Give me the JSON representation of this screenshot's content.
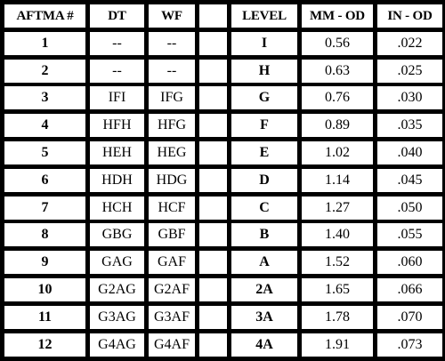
{
  "columns": [
    "AFTMA #",
    "DT",
    "WF",
    "",
    "LEVEL",
    "MM - OD",
    "IN - OD"
  ],
  "rows": [
    {
      "aftma": "1",
      "dt": "--",
      "wf": "--",
      "blank": "",
      "level": "I",
      "mm": "0.56",
      "in": ".022"
    },
    {
      "aftma": "2",
      "dt": "--",
      "wf": "--",
      "blank": "",
      "level": "H",
      "mm": "0.63",
      "in": ".025"
    },
    {
      "aftma": "3",
      "dt": "IFI",
      "wf": "IFG",
      "blank": "",
      "level": "G",
      "mm": "0.76",
      "in": ".030"
    },
    {
      "aftma": "4",
      "dt": "HFH",
      "wf": "HFG",
      "blank": "",
      "level": "F",
      "mm": "0.89",
      "in": ".035"
    },
    {
      "aftma": "5",
      "dt": "HEH",
      "wf": "HEG",
      "blank": "",
      "level": "E",
      "mm": "1.02",
      "in": ".040"
    },
    {
      "aftma": "6",
      "dt": "HDH",
      "wf": "HDG",
      "blank": "",
      "level": "D",
      "mm": "1.14",
      "in": ".045"
    },
    {
      "aftma": "7",
      "dt": "HCH",
      "wf": "HCF",
      "blank": "",
      "level": "C",
      "mm": "1.27",
      "in": ".050"
    },
    {
      "aftma": "8",
      "dt": "GBG",
      "wf": "GBF",
      "blank": "",
      "level": "B",
      "mm": "1.40",
      "in": ".055"
    },
    {
      "aftma": "9",
      "dt": "GAG",
      "wf": "GAF",
      "blank": "",
      "level": "A",
      "mm": "1.52",
      "in": ".060"
    },
    {
      "aftma": "10",
      "dt": "G2AG",
      "wf": "G2AF",
      "blank": "",
      "level": "2A",
      "mm": "1.65",
      "in": ".066"
    },
    {
      "aftma": "11",
      "dt": "G3AG",
      "wf": "G3AF",
      "blank": "",
      "level": "3A",
      "mm": "1.78",
      "in": ".070"
    },
    {
      "aftma": "12",
      "dt": "G4AG",
      "wf": "G4AF",
      "blank": "",
      "level": "4A",
      "mm": "1.91",
      "in": ".073"
    }
  ]
}
